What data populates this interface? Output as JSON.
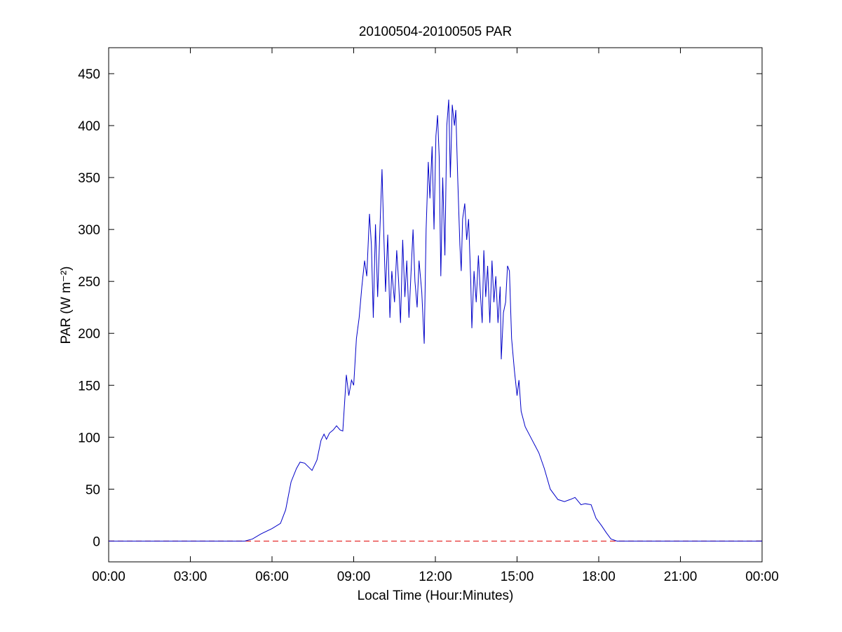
{
  "chart_data": {
    "type": "line",
    "title": "20100504-20100505 PAR",
    "xlabel": "Local Time (Hour:Minutes)",
    "ylabel": "PAR (W m⁻²)",
    "x": [
      0,
      5.0,
      5.28,
      5.6,
      6.0,
      6.31,
      6.5,
      6.7,
      6.9,
      7.03,
      7.2,
      7.47,
      7.65,
      7.8,
      7.91,
      8.0,
      8.11,
      8.25,
      8.37,
      8.5,
      8.6,
      8.73,
      8.82,
      8.92,
      9.0,
      9.1,
      9.2,
      9.3,
      9.4,
      9.48,
      9.58,
      9.65,
      9.72,
      9.8,
      9.88,
      9.95,
      10.04,
      10.1,
      10.17,
      10.25,
      10.33,
      10.4,
      10.5,
      10.58,
      10.65,
      10.72,
      10.8,
      10.88,
      10.95,
      11.03,
      11.1,
      11.18,
      11.25,
      11.33,
      11.4,
      11.5,
      11.59,
      11.66,
      11.74,
      11.8,
      11.88,
      11.95,
      12.02,
      12.08,
      12.14,
      12.2,
      12.27,
      12.35,
      12.42,
      12.49,
      12.55,
      12.62,
      12.7,
      12.75,
      12.82,
      12.9,
      12.95,
      13.0,
      13.08,
      13.15,
      13.22,
      13.3,
      13.34,
      13.42,
      13.5,
      13.58,
      13.65,
      13.72,
      13.78,
      13.85,
      13.92,
      14.0,
      14.08,
      14.15,
      14.22,
      14.3,
      14.38,
      14.42,
      14.5,
      14.58,
      14.65,
      14.72,
      14.8,
      14.9,
      15.0,
      15.07,
      15.15,
      15.3,
      15.5,
      15.8,
      16.0,
      16.22,
      16.5,
      16.74,
      16.95,
      17.13,
      17.35,
      17.5,
      17.72,
      17.9,
      18.1,
      18.28,
      18.45,
      18.67,
      24
    ],
    "series": [
      {
        "name": "PAR",
        "color": "#0000c8",
        "values": [
          0,
          0,
          2,
          7,
          12,
          17,
          30,
          57,
          70,
          76,
          75,
          68,
          78,
          97,
          103,
          98,
          104,
          107,
          111,
          107,
          106,
          160,
          140,
          155,
          150,
          195,
          215,
          245,
          270,
          255,
          315,
          285,
          215,
          305,
          235,
          290,
          358,
          300,
          240,
          295,
          215,
          260,
          230,
          280,
          250,
          210,
          290,
          235,
          270,
          215,
          255,
          300,
          250,
          225,
          270,
          240,
          190,
          300,
          365,
          330,
          380,
          300,
          390,
          410,
          370,
          255,
          350,
          275,
          400,
          425,
          350,
          420,
          400,
          415,
          350,
          285,
          260,
          310,
          325,
          290,
          310,
          250,
          205,
          260,
          230,
          275,
          240,
          210,
          280,
          235,
          265,
          210,
          270,
          230,
          255,
          210,
          245,
          175,
          220,
          230,
          265,
          260,
          195,
          165,
          140,
          155,
          125,
          110,
          100,
          85,
          70,
          50,
          40,
          38,
          40,
          42,
          35,
          36,
          35,
          22,
          15,
          8,
          2,
          0,
          0
        ]
      }
    ],
    "reference_line": {
      "value": 0,
      "color": "#e00000"
    },
    "xlim": [
      0,
      24
    ],
    "xticks": [
      {
        "value": 0,
        "label": "00:00"
      },
      {
        "value": 3,
        "label": "03:00"
      },
      {
        "value": 6,
        "label": "06:00"
      },
      {
        "value": 9,
        "label": "09:00"
      },
      {
        "value": 12,
        "label": "12:00"
      },
      {
        "value": 15,
        "label": "15:00"
      },
      {
        "value": 18,
        "label": "18:00"
      },
      {
        "value": 21,
        "label": "21:00"
      },
      {
        "value": 24,
        "label": "00:00"
      }
    ],
    "ylim": [
      -20,
      475
    ],
    "yticks": [
      0,
      50,
      100,
      150,
      200,
      250,
      300,
      350,
      400,
      450
    ],
    "grid": false
  }
}
